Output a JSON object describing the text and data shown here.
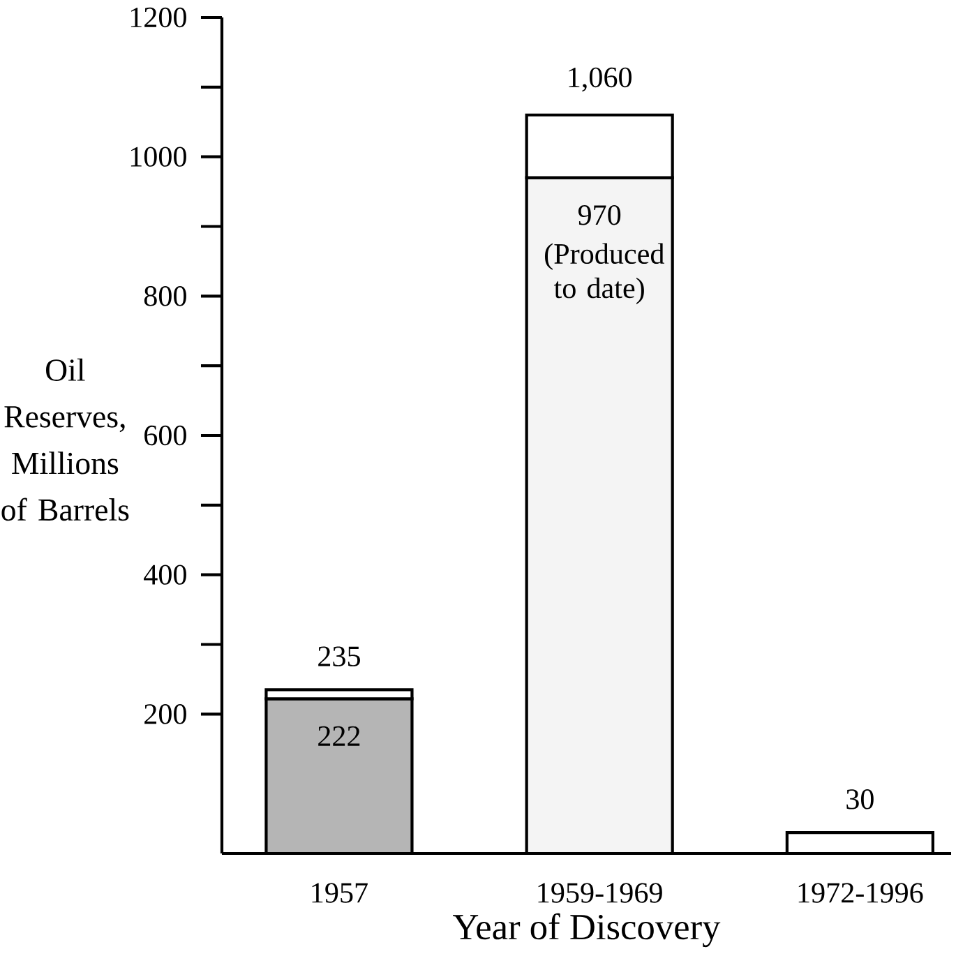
{
  "chart_data": {
    "type": "bar",
    "stacked": true,
    "xlabel": "Year of Discovery",
    "ylabel": "Oil Reserves, Millions of Barrels",
    "categories": [
      "1957",
      "1959-1969",
      "1972-1996"
    ],
    "series": [
      {
        "colors": [
          "#b5b5b5",
          "#f4f4f4",
          "#ffffff"
        ],
        "values": [
          222,
          970,
          null
        ],
        "value_labels": [
          "222",
          "970",
          null
        ]
      },
      {
        "color": "#ffffff",
        "values": [
          13,
          90,
          30
        ]
      }
    ],
    "totals": [
      "235",
      "1,060",
      "30"
    ],
    "annotations": [
      "(Produced to date)"
    ],
    "ylim": [
      0,
      1200
    ],
    "yticks": [
      200,
      400,
      600,
      800,
      1000,
      1200
    ],
    "grid": false
  }
}
